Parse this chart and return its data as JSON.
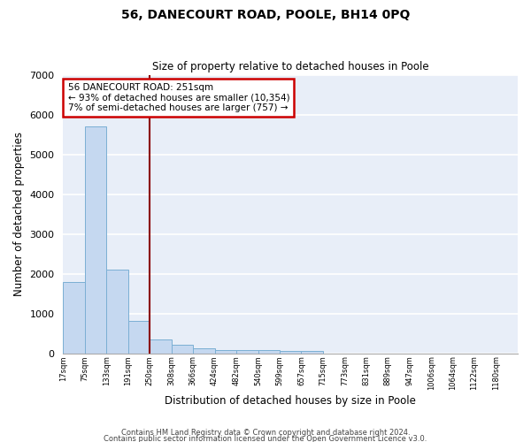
{
  "title": "56, DANECOURT ROAD, POOLE, BH14 0PQ",
  "subtitle": "Size of property relative to detached houses in Poole",
  "xlabel": "Distribution of detached houses by size in Poole",
  "ylabel": "Number of detached properties",
  "bar_color": "#c5d8f0",
  "bar_edge_color": "#7bafd4",
  "background_color": "#e8eef8",
  "grid_color": "#ffffff",
  "bin_labels": [
    "17sqm",
    "75sqm",
    "133sqm",
    "191sqm",
    "250sqm",
    "308sqm",
    "366sqm",
    "424sqm",
    "482sqm",
    "540sqm",
    "599sqm",
    "657sqm",
    "715sqm",
    "773sqm",
    "831sqm",
    "889sqm",
    "947sqm",
    "1006sqm",
    "1064sqm",
    "1122sqm",
    "1180sqm"
  ],
  "bar_heights": [
    1800,
    5700,
    2100,
    820,
    350,
    220,
    130,
    90,
    80,
    80,
    70,
    60,
    0,
    0,
    0,
    0,
    0,
    0,
    0,
    0,
    0
  ],
  "property_line_color": "#8b0000",
  "annotation_text": "56 DANECOURT ROAD: 251sqm\n← 93% of detached houses are smaller (10,354)\n7% of semi-detached houses are larger (757) →",
  "annotation_box_color": "#cc0000",
  "ylim": [
    0,
    7000
  ],
  "footnote1": "Contains HM Land Registry data © Crown copyright and database right 2024.",
  "footnote2": "Contains public sector information licensed under the Open Government Licence v3.0."
}
